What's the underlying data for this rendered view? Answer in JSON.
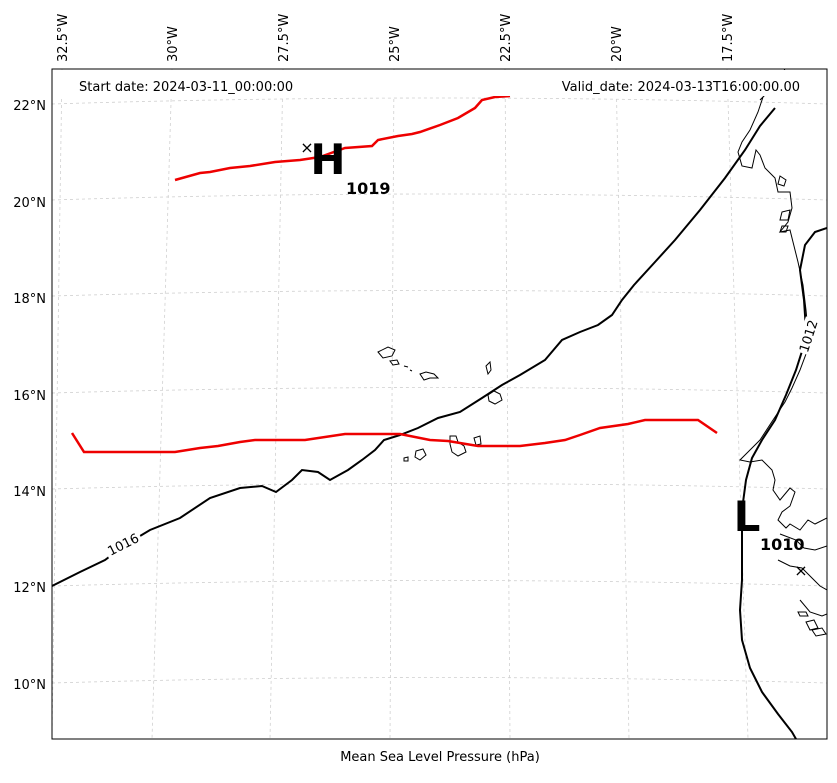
{
  "header": {
    "start_date": "Start date: 2024-03-11_00:00:00",
    "valid_date": "Valid_date: 2024-03-13T16:00:00.00"
  },
  "axes": {
    "xlabel": "Mean Sea Level Pressure (hPa)",
    "lon_ticks": [
      "32.5°W",
      "30°W",
      "27.5°W",
      "25°W",
      "22.5°W",
      "20°W",
      "17.5°W"
    ],
    "lat_ticks": [
      "22°N",
      "20°N",
      "18°N",
      "16°N",
      "14°N",
      "12°N",
      "10°N"
    ]
  },
  "systems": {
    "high": {
      "letter": "H",
      "value": "1019",
      "center_marker": "×"
    },
    "low": {
      "letter": "L",
      "value": "1010",
      "center_marker": "×"
    }
  },
  "contours": {
    "black_label_1016": "1016",
    "black_label_1012": "1012"
  },
  "colors": {
    "red_isobar": "#ee0000",
    "black_isobar": "#000000",
    "grid": "#cccccc"
  }
}
